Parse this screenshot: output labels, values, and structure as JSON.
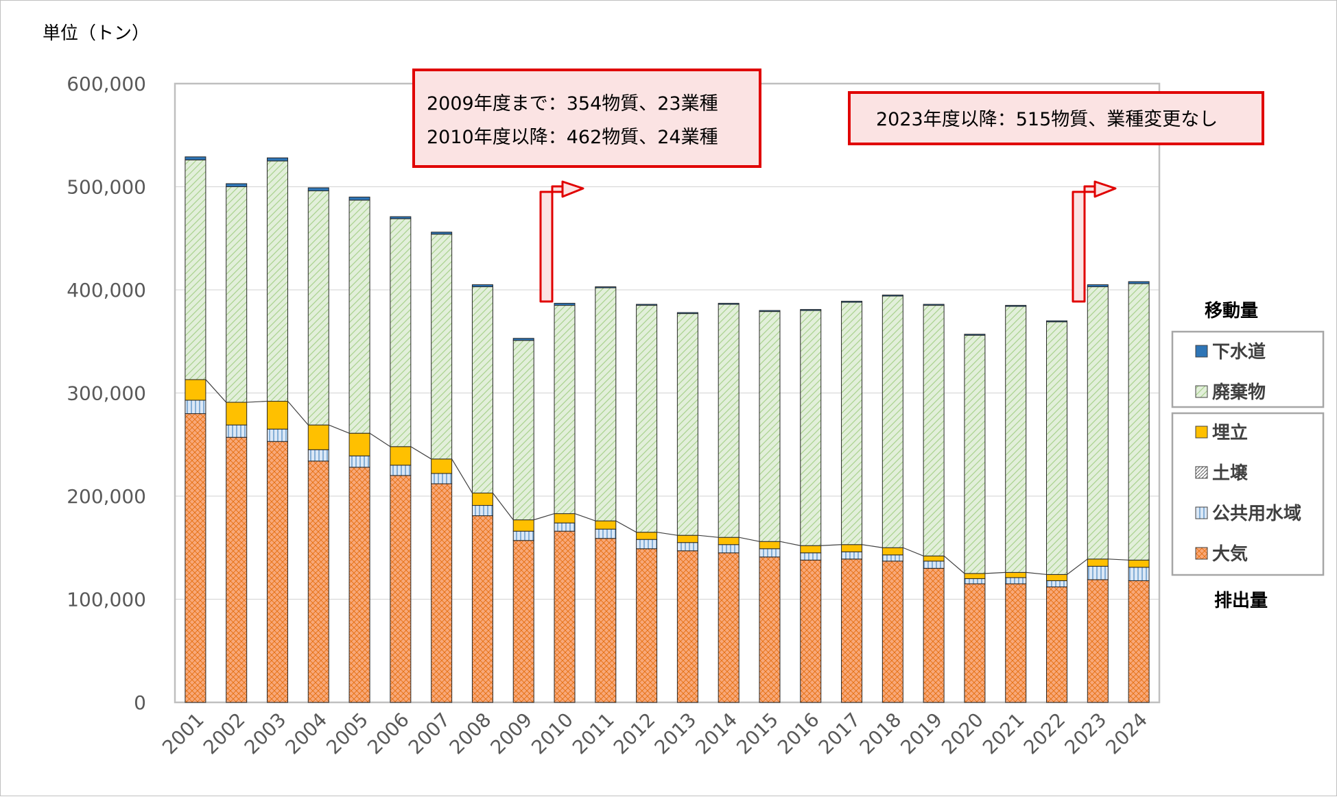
{
  "chart_data": {
    "type": "bar",
    "stacked": true,
    "unit_label": "単位（トン）",
    "ylim": [
      0,
      600000
    ],
    "yticks": [
      0,
      100000,
      200000,
      300000,
      400000,
      500000,
      600000
    ],
    "ytick_labels": [
      "0",
      "100,000",
      "200,000",
      "300,000",
      "400,000",
      "500,000",
      "600,000"
    ],
    "grid": true,
    "categories": [
      "2001",
      "2002",
      "2003",
      "2004",
      "2005",
      "2006",
      "2007",
      "2008",
      "2009",
      "2010",
      "2011",
      "2012",
      "2013",
      "2014",
      "2015",
      "2016",
      "2017",
      "2018",
      "2019",
      "2020",
      "2021",
      "2022",
      "2023",
      "2024"
    ],
    "series": [
      {
        "name": "大気",
        "key": "air",
        "color": "#f8a879",
        "values": [
          280000,
          257000,
          253000,
          234000,
          228000,
          220000,
          212000,
          181000,
          157000,
          166000,
          159000,
          149000,
          147000,
          145000,
          141000,
          138000,
          139000,
          137000,
          130000,
          115000,
          115000,
          112000,
          119000,
          118000
        ]
      },
      {
        "name": "公共用水域",
        "key": "water",
        "color": "#d6e6f5",
        "values": [
          13000,
          12000,
          12000,
          11000,
          11000,
          10000,
          10000,
          10000,
          9000,
          8000,
          9000,
          9000,
          8000,
          8000,
          8000,
          7000,
          7000,
          6000,
          7000,
          5000,
          6000,
          6000,
          13000,
          13000
        ]
      },
      {
        "name": "土壌",
        "key": "soil",
        "color": "#c8c8c8",
        "values": [
          0,
          0,
          0,
          0,
          0,
          0,
          0,
          0,
          0,
          0,
          0,
          0,
          0,
          0,
          0,
          0,
          0,
          0,
          0,
          0,
          0,
          0,
          0,
          0
        ]
      },
      {
        "name": "埋立",
        "key": "landfill",
        "color": "#ffc000",
        "values": [
          20000,
          22000,
          27000,
          24000,
          22000,
          18000,
          14000,
          12000,
          11000,
          9000,
          8000,
          7000,
          7000,
          7000,
          7000,
          7000,
          7000,
          7000,
          5000,
          5000,
          5000,
          6000,
          7000,
          7000
        ]
      },
      {
        "name": "廃棄物",
        "key": "waste",
        "color": "#e2efda",
        "values": [
          213000,
          209000,
          233000,
          227000,
          226000,
          221000,
          218000,
          200000,
          174000,
          202000,
          226000,
          220000,
          215000,
          226000,
          223000,
          228000,
          235000,
          244000,
          243000,
          231000,
          258000,
          245000,
          264000,
          268000
        ]
      },
      {
        "name": "下水道",
        "key": "sewer",
        "color": "#2e75b6",
        "values": [
          3000,
          3000,
          3000,
          3000,
          3000,
          2000,
          2000,
          2000,
          2000,
          2000,
          1000,
          1000,
          1000,
          1000,
          1000,
          1000,
          1000,
          1000,
          1000,
          1000,
          1000,
          1000,
          2000,
          2000
        ]
      }
    ],
    "emission_line": {
      "name": "排出量合計",
      "color": "#404040"
    },
    "legend": {
      "placement": "right",
      "transfer_title": "移動量",
      "emission_title": "排出量",
      "transfer_items": [
        "下水道",
        "廃棄物"
      ],
      "emission_items": [
        "埋立",
        "土壌",
        "公共用水域",
        "大気"
      ]
    },
    "annotations": [
      {
        "id": "note-2009",
        "lines": [
          "2009年度まで：354物質、23業種",
          "2010年度以降：462物質、24業種"
        ],
        "arrow_category": "2010"
      },
      {
        "id": "note-2023",
        "lines": [
          "2023年度以降：515物質、業種変更なし"
        ],
        "arrow_category": "2023"
      }
    ]
  },
  "colors": {
    "annotation_border": "#e00000",
    "annotation_fill": "#fbe3e3",
    "grid": "#d9d9d9",
    "plot_border": "#bfbfbf",
    "axis_text": "#595959"
  }
}
